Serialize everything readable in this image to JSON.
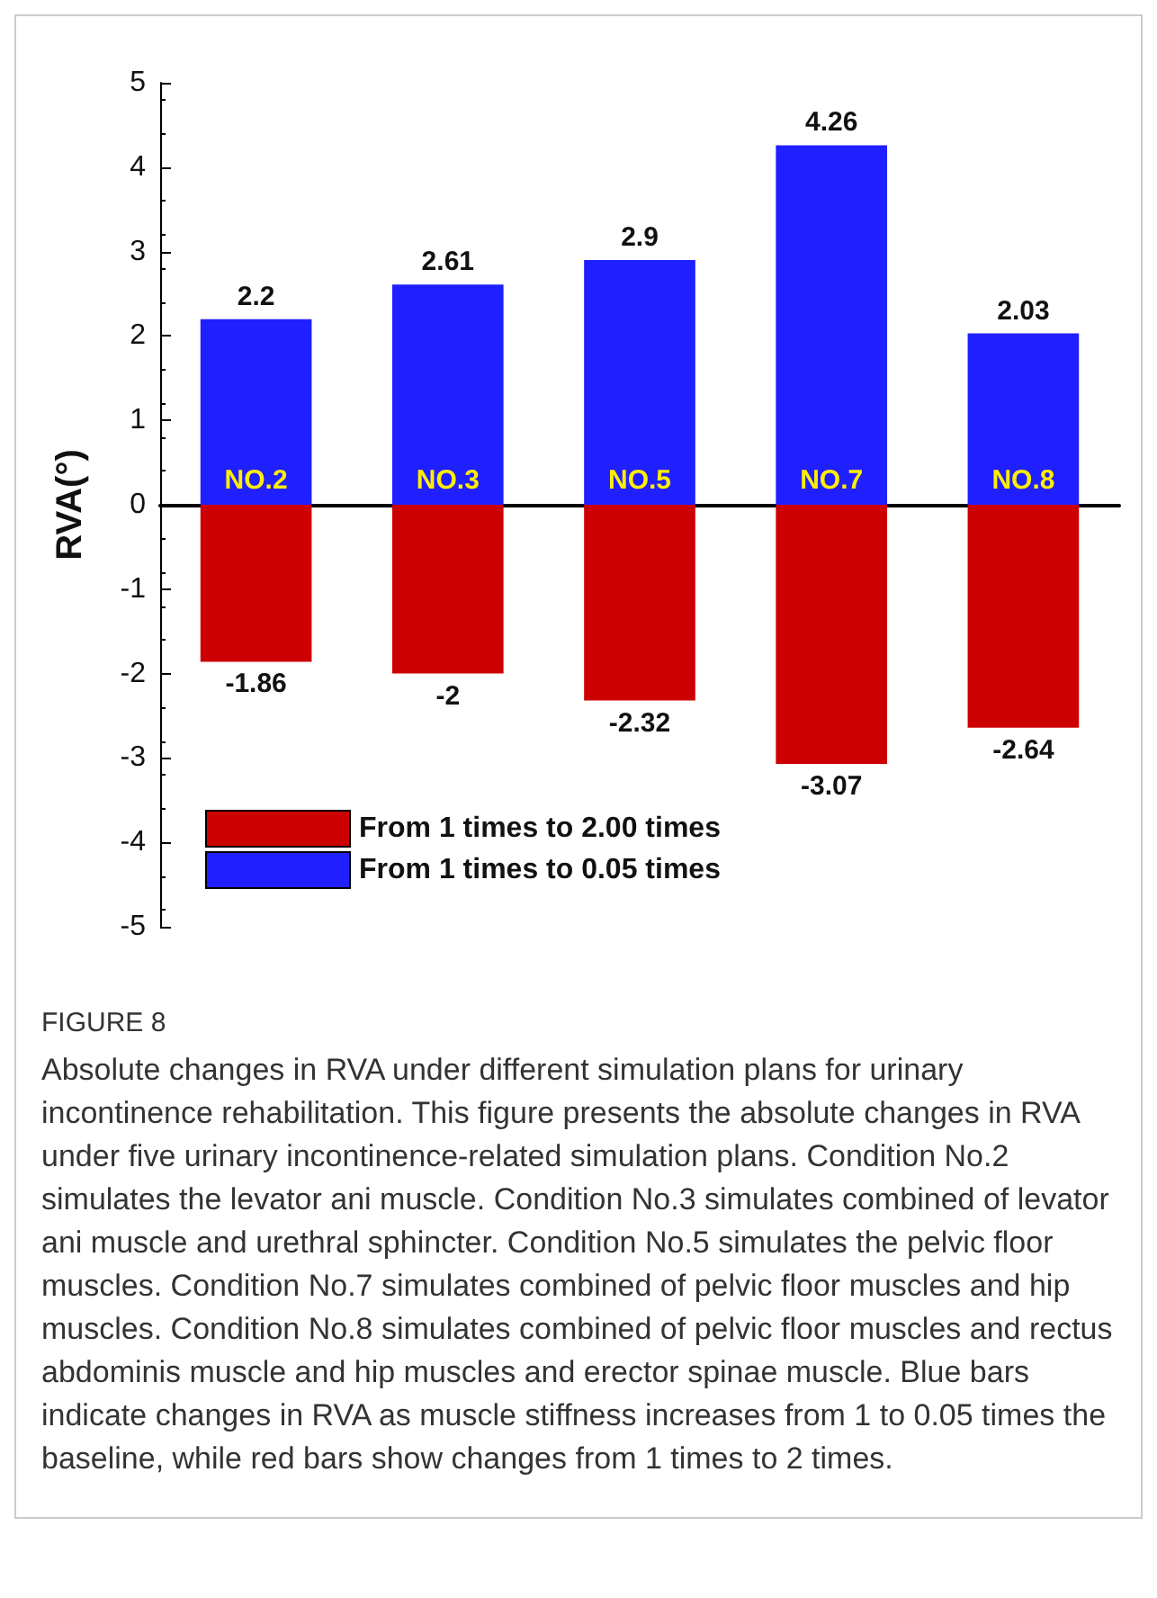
{
  "chart_data": {
    "type": "bar",
    "ylabel": "RVA(°)",
    "categories": [
      "NO.2",
      "NO.3",
      "NO.5",
      "NO.7",
      "NO.8"
    ],
    "stacked": true,
    "series": [
      {
        "name": "From 1 times to 2.00 times",
        "color": "#cc0000",
        "values": [
          -1.86,
          -2,
          -2.32,
          -3.07,
          -2.64
        ]
      },
      {
        "name": "From 1 times to 0.05 times",
        "color": "#1f1fff",
        "values": [
          2.2,
          2.61,
          2.9,
          4.26,
          2.03
        ]
      }
    ],
    "ylim": [
      -5,
      5
    ],
    "yticks": [
      -5,
      -4,
      -3,
      -2,
      -1,
      0,
      1,
      2,
      3,
      4,
      5
    ],
    "grid": false,
    "legend": "bottom left",
    "data_labels": true,
    "annotations": [
      "FIGURE 8",
      "Absolute changes in RVA under different simulation plans for urinary incontinence rehabilitation. This figure presents the absolute changes in RVA under five urinary incontinence-related simulation plans. Condition No.2 simulates the levator ani muscle. Condition No.3 simulates combined of levator ani muscle and urethral sphincter. Condition No.5 simulates the pelvic floor muscles. Condition No.7 simulates combined of pelvic floor muscles and hip muscles. Condition No.8 simulates combined of pelvic floor muscles and rectus abdominis muscle and hip muscles and erector spinae muscle. Blue bars indicate changes in RVA as muscle stiffness increases from 1 to 0.05 times the baseline, while red bars show changes from 1 times to 2 times."
    ]
  }
}
